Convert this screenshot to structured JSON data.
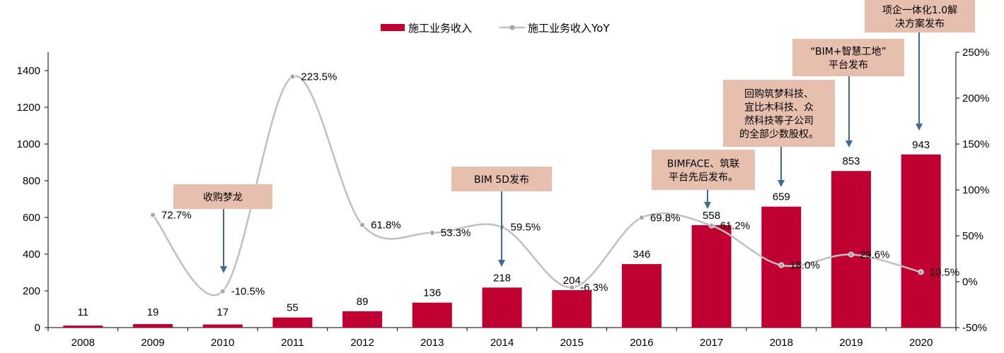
{
  "colors": {
    "bar": "#c00030",
    "line": "#bfbfbf",
    "marker": "#a6a6a6",
    "annotation_bg": "#e6bfae",
    "arrow": "#3e6c94"
  },
  "legend": [
    {
      "label": "施工业务收入",
      "kind": "bar"
    },
    {
      "label": "施工业务收入YoY",
      "kind": "line"
    }
  ],
  "chart_data": {
    "type": "bar",
    "categories": [
      "2008",
      "2009",
      "2010",
      "2011",
      "2012",
      "2013",
      "2014",
      "2015",
      "2016",
      "2017",
      "2018",
      "2019",
      "2020"
    ],
    "series": [
      {
        "name": "施工业务收入",
        "type": "bar",
        "axis": "left",
        "values": [
          11,
          19,
          17,
          55,
          89,
          136,
          218,
          204,
          346,
          558,
          659,
          853,
          943
        ]
      },
      {
        "name": "施工业务收入YoY",
        "type": "line",
        "axis": "right",
        "values": [
          null,
          72.7,
          -10.5,
          223.5,
          61.8,
          53.3,
          59.5,
          -6.3,
          69.8,
          61.2,
          18.0,
          29.6,
          10.5
        ],
        "labels": [
          null,
          "72.7%",
          "-10.5%",
          "223.5%",
          "61.8%",
          "53.3%",
          "59.5%",
          "-6.3%",
          "69.8%",
          "61.2%",
          "18.0%",
          "29.6%",
          "10.5%"
        ]
      }
    ],
    "y_left": {
      "ylim": [
        0,
        1500
      ],
      "ticks": [
        "0",
        "200",
        "400",
        "600",
        "800",
        "1000",
        "1200",
        "1400"
      ]
    },
    "y_right": {
      "ylim": [
        -50,
        250
      ],
      "ticks": [
        "-50%",
        "0%",
        "50%",
        "100%",
        "150%",
        "200%",
        "250%"
      ]
    },
    "annotations": [
      {
        "lines": [
          "收购梦龙"
        ],
        "category": "2010"
      },
      {
        "lines": [
          "BIM 5D发布"
        ],
        "category": "2014"
      },
      {
        "lines": [
          "BIMFACE、筑联",
          "平台先后发布。"
        ],
        "category": "2017"
      },
      {
        "lines": [
          "回购筑梦科技、",
          "宜比木科技、众",
          "然科技等子公司",
          "的全部少数股权。"
        ],
        "category": "2018"
      },
      {
        "lines": [
          "“BIM+智慧工地”",
          "平台发布"
        ],
        "category": "2019"
      },
      {
        "lines": [
          "项企一体化1.0解",
          "决方案发布"
        ],
        "category": "2020"
      }
    ]
  }
}
